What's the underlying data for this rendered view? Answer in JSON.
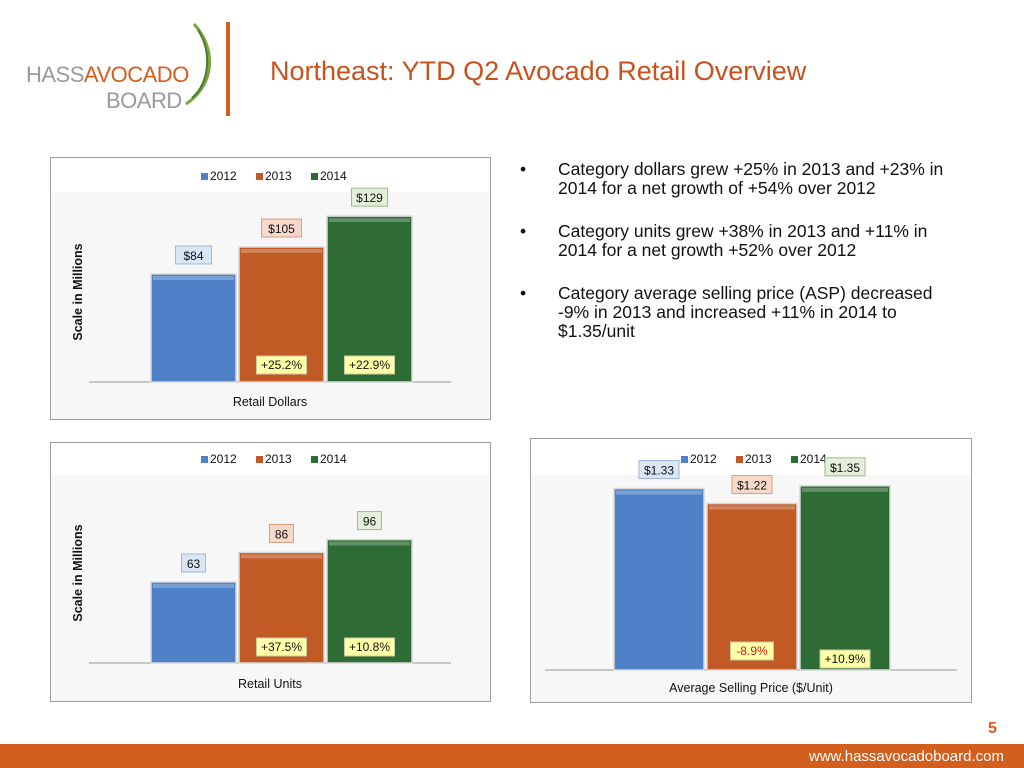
{
  "logo": {
    "word1": "HASS",
    "word2": "AVOCADO",
    "word3": "BOARD"
  },
  "title": "Northeast: YTD Q2 Avocado Retail Overview",
  "bullets": [
    "Category dollars grew +25% in 2013 and +23% in 2014 for a net growth of +54% over 2012",
    "Category units grew +38% in 2013 and +11% in 2014 for a net growth +52% over 2012",
    "Category average selling price (ASP) decreased -9% in 2013 and increased +11% in 2014 to $1.35/unit"
  ],
  "bullet_symbol": "•",
  "page_number": "5",
  "footer_url": "www.hassavocadoboard.com",
  "colors": {
    "accent": "#d35f1e",
    "s2012": "#4f81c8",
    "s2013": "#c25a26",
    "s2014": "#2f6b34"
  },
  "chart_data": [
    {
      "type": "bar",
      "categories": [
        "2012",
        "2013",
        "2014"
      ],
      "values": [
        84,
        105,
        129
      ],
      "value_labels": [
        "$84",
        "$105",
        "$129"
      ],
      "change_labels": [
        "",
        "+25.2%",
        "+22.9%"
      ],
      "legend": [
        "2012",
        "2013",
        "2014"
      ],
      "xlabel": "Retail Dollars",
      "ylabel": "Scale in Millions",
      "ylim": [
        0,
        140
      ]
    },
    {
      "type": "bar",
      "categories": [
        "2012",
        "2013",
        "2014"
      ],
      "values": [
        63,
        86,
        96
      ],
      "value_labels": [
        "63",
        "86",
        "96"
      ],
      "change_labels": [
        "",
        "+37.5%",
        "+10.8%"
      ],
      "legend": [
        "2012",
        "2013",
        "2014"
      ],
      "xlabel": "Retail Units",
      "ylabel": "Scale in Millions",
      "ylim": [
        0,
        140
      ]
    },
    {
      "type": "bar",
      "categories": [
        "2012",
        "2013",
        "2014"
      ],
      "values": [
        1.33,
        1.22,
        1.35
      ],
      "value_labels": [
        "$1.33",
        "$1.22",
        "$1.35"
      ],
      "change_labels": [
        "",
        "-8.9%",
        "+10.9%"
      ],
      "legend": [
        "2012",
        "2013",
        "2014"
      ],
      "xlabel": "Average Selling Price ($/Unit)",
      "ylabel": "",
      "ylim": [
        0,
        1.4
      ]
    }
  ]
}
